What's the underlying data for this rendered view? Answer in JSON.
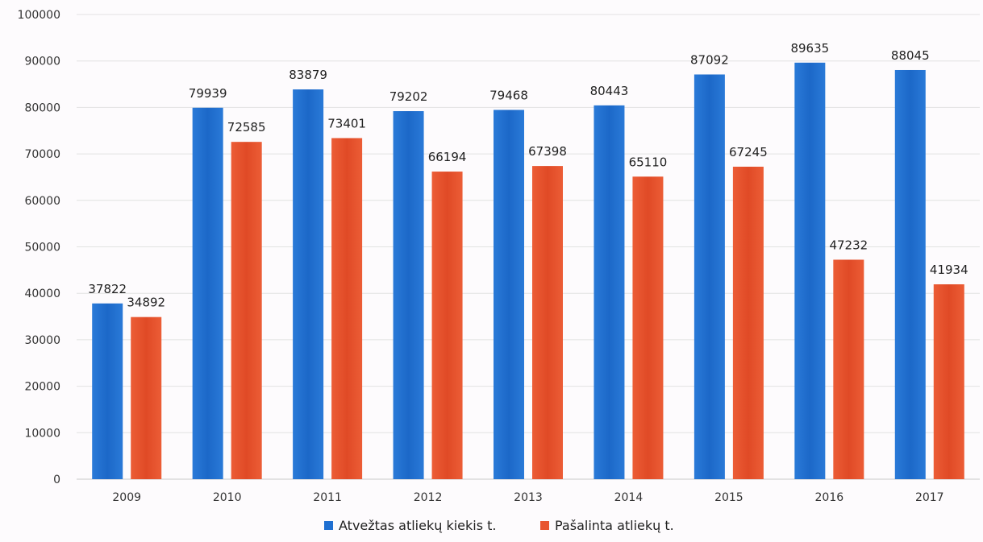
{
  "chart_data": {
    "type": "bar",
    "title": "",
    "xlabel": "",
    "ylabel": "",
    "categories": [
      "2009",
      "2010",
      "2011",
      "2012",
      "2013",
      "2014",
      "2015",
      "2016",
      "2017"
    ],
    "ylim": [
      0,
      100000
    ],
    "yticks": [
      "0",
      "10000",
      "20000",
      "30000",
      "40000",
      "50000",
      "60000",
      "70000",
      "80000",
      "90000",
      "100000"
    ],
    "grid": true,
    "legend_position": "bottom",
    "series": [
      {
        "name": "Atvežtas atliekų kiekis t.",
        "color": "#1f6fd1",
        "values": [
          37822,
          79939,
          83879,
          79202,
          79468,
          80443,
          87092,
          89635,
          88045
        ]
      },
      {
        "name": "Pašalinta atliekų t.",
        "color": "#e8552f",
        "values": [
          34892,
          72585,
          73401,
          66194,
          67398,
          65110,
          67245,
          47232,
          41934
        ]
      }
    ]
  }
}
